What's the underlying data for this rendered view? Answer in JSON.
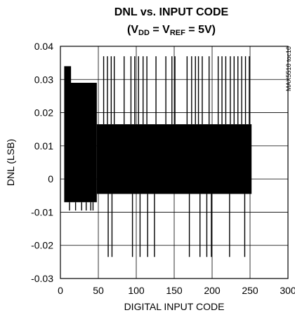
{
  "chart_data": {
    "type": "line",
    "title_line1": "DNL vs. INPUT CODE",
    "title_line2_pre": "(V",
    "title_sub_dd": "DD",
    "title_mid": " = V",
    "title_sub_ref": "REF",
    "title_post": " = 5V)",
    "xlabel": "DIGITAL INPUT CODE",
    "ylabel": "DNL (LSB)",
    "figure_code": "MAX5510 toc10",
    "xlim": [
      0,
      300
    ],
    "ylim": [
      -0.03,
      0.04
    ],
    "x_ticks": [
      0,
      50,
      100,
      150,
      200,
      250,
      300
    ],
    "y_ticks": [
      -0.03,
      -0.02,
      -0.01,
      0,
      0.01,
      0.02,
      0.03,
      0.04
    ],
    "x_tick_labels": [
      "0",
      "50",
      "100",
      "150",
      "200",
      "250",
      "300"
    ],
    "y_tick_labels": [
      "-0.03",
      "-0.02",
      "-0.01",
      "0",
      "0.01",
      "0.02",
      "0.03",
      "0.04"
    ],
    "grid": true,
    "band_low_code": {
      "x_range": [
        5,
        48
      ],
      "dnl_min": -0.007,
      "dnl_max": 0.029
    },
    "band_main": {
      "x_range": [
        48,
        252
      ],
      "dnl_min": -0.0045,
      "dnl_max": 0.0165
    },
    "band_start_peak": {
      "x_range": [
        5,
        14
      ],
      "dnl_max": 0.034
    },
    "spikes_up": [
      57,
      62,
      67,
      71,
      84,
      93,
      98,
      103,
      109,
      114,
      126,
      139,
      147,
      151,
      167,
      173,
      178,
      182,
      187,
      196,
      208,
      213,
      218,
      224,
      229,
      234,
      239,
      244,
      249
    ],
    "spikes_up_value": 0.037,
    "spikes_down": [
      63,
      68,
      95,
      105,
      115,
      124,
      170,
      184,
      193,
      199,
      223,
      243
    ],
    "spikes_down_value": -0.0235,
    "low_code_dips": [
      12,
      20,
      28,
      34,
      40,
      43
    ],
    "low_code_dip_value": -0.0095,
    "color": "#000000"
  }
}
